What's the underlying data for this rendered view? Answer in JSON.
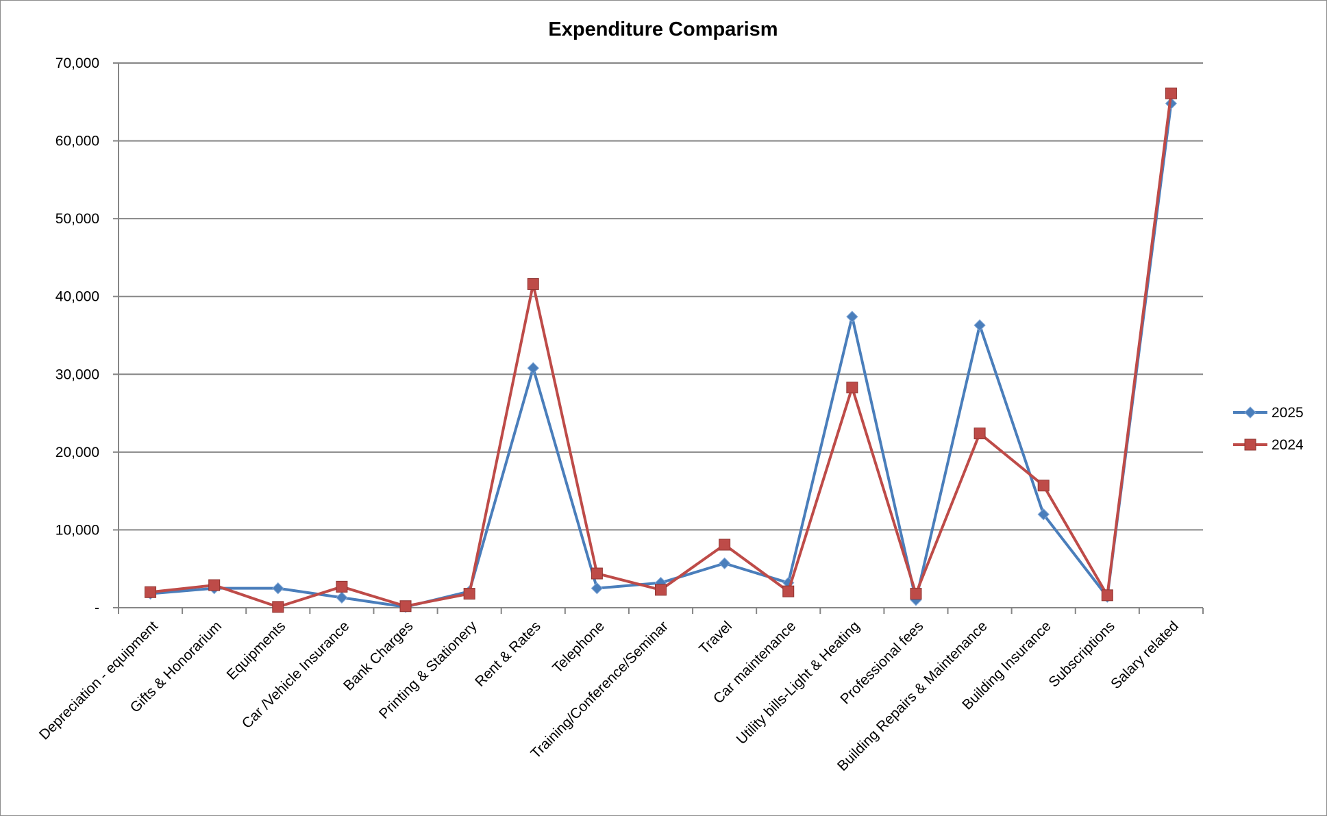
{
  "chart_data": {
    "type": "line",
    "title": "Expenditure Comparism",
    "categories": [
      "Depreciation - equipment",
      "Gifts & Honorarium",
      "Equipments",
      "Car /Vehicle Insurance",
      "Bank Charges",
      "Printing & Stationery",
      "Rent & Rates",
      "Telephone",
      "Training/Conference/Seminar",
      "Travel",
      "Car maintenance",
      "Utility bills-Light & Heating",
      "Professional fees",
      "Building Repairs & Maintenance",
      "Building Insurance",
      "Subscriptions",
      "Salary related"
    ],
    "series": [
      {
        "name": "2025",
        "color": "#4a7ebb",
        "marker": "diamond",
        "values": [
          1800,
          2500,
          2500,
          1300,
          100,
          2100,
          30800,
          2500,
          3200,
          5700,
          3200,
          37400,
          1000,
          36300,
          12000,
          1400,
          64800
        ]
      },
      {
        "name": "2024",
        "color": "#be4b48",
        "marker": "square",
        "values": [
          2000,
          2900,
          100,
          2700,
          200,
          1800,
          41600,
          4400,
          2300,
          8100,
          2100,
          28300,
          1800,
          22400,
          15700,
          1600,
          66100
        ]
      }
    ],
    "yticks": [
      "-",
      "10,000",
      "20,000",
      "30,000",
      "40,000",
      "50,000",
      "60,000",
      "70,000"
    ],
    "ylim": [
      0,
      70000
    ],
    "grid": "horizontal",
    "legend_position": "right"
  }
}
